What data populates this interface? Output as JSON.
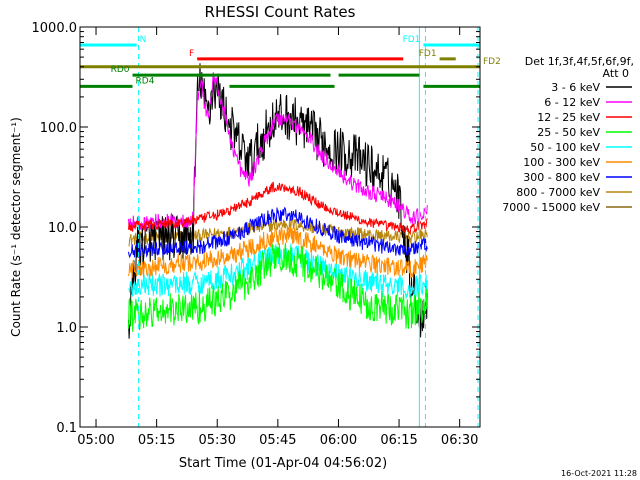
{
  "chart_data": {
    "type": "line",
    "title": "RHESSI Count Rates",
    "xlabel": "Start Time (01-Apr-04 04:56:02)",
    "ylabel": "Count Rate (s⁻¹ detector segment⁻¹)",
    "yscale": "log",
    "ylim": [
      0.1,
      1000
    ],
    "xlim_minutes_after_start": [
      0,
      99
    ],
    "x_ticks": [
      "05:00",
      "05:15",
      "05:30",
      "05:45",
      "06:00",
      "06:15",
      "06:30"
    ],
    "y_ticks": [
      "0.1",
      "1.0",
      "10.0",
      "100.0",
      "1000.0"
    ],
    "footer": "16-Oct-2021 11:28",
    "legend": {
      "title_line1": "Det 1f,3f,4f,5f,6f,9f,",
      "title_line2": "Att 0",
      "placement": "right"
    },
    "series": [
      {
        "name": "3 - 6 keV",
        "color": "#000000",
        "x": [
          12,
          14,
          16,
          18,
          20,
          22,
          24,
          26,
          28,
          29,
          30,
          31,
          32,
          33,
          34,
          36,
          38,
          40,
          42,
          45,
          48,
          51,
          54,
          57,
          60,
          63,
          66,
          69,
          72,
          75,
          78,
          79,
          80,
          82,
          84,
          86
        ],
        "y": [
          1.0,
          6.0,
          7.0,
          8.0,
          7.5,
          8.0,
          7.5,
          8.0,
          8.0,
          200,
          300,
          160,
          150,
          260,
          230,
          140,
          85,
          60,
          45,
          75,
          120,
          130,
          110,
          90,
          70,
          60,
          55,
          48,
          40,
          32,
          25,
          20,
          10,
          3,
          1.2,
          2.0
        ]
      },
      {
        "name": "6 - 12 keV",
        "color": "#ff00ff",
        "x": [
          12,
          15,
          20,
          25,
          28,
          29,
          30,
          31,
          32,
          33,
          34,
          36,
          38,
          40,
          42,
          45,
          48,
          51,
          54,
          57,
          60,
          63,
          66,
          69,
          72,
          75,
          78,
          80,
          82,
          86
        ],
        "y": [
          11,
          11,
          11.5,
          11.5,
          12,
          180,
          300,
          150,
          140,
          320,
          260,
          120,
          60,
          35,
          30,
          60,
          115,
          125,
          100,
          75,
          50,
          40,
          30,
          25,
          22,
          20,
          17,
          15,
          12,
          14
        ]
      },
      {
        "name": "12 - 25 keV",
        "color": "#ff0000",
        "x": [
          12,
          18,
          24,
          30,
          36,
          42,
          45,
          48,
          51,
          54,
          58,
          62,
          66,
          70,
          74,
          78,
          82,
          86
        ],
        "y": [
          10,
          10.5,
          11,
          12,
          14,
          18,
          22,
          25,
          25,
          23,
          18,
          15,
          13,
          11.5,
          10.5,
          10,
          9.5,
          11
        ]
      },
      {
        "name": "25 - 50 keV",
        "color": "#00ff00",
        "x": [
          12,
          18,
          24,
          30,
          36,
          42,
          45,
          48,
          51,
          54,
          58,
          62,
          66,
          70,
          74,
          78,
          82,
          86
        ],
        "y": [
          1.3,
          1.4,
          1.5,
          1.6,
          2.0,
          3.0,
          3.8,
          4.8,
          5.0,
          4.6,
          3.6,
          2.8,
          2.2,
          1.8,
          1.6,
          1.5,
          1.4,
          1.7
        ]
      },
      {
        "name": "50 - 100 keV",
        "color": "#00ffff",
        "x": [
          12,
          18,
          24,
          30,
          36,
          42,
          45,
          48,
          51,
          54,
          58,
          62,
          66,
          70,
          74,
          78,
          82,
          86
        ],
        "y": [
          2.5,
          2.6,
          2.7,
          2.8,
          3.2,
          4.0,
          4.6,
          5.2,
          5.4,
          5.0,
          4.3,
          3.7,
          3.2,
          2.9,
          2.7,
          2.5,
          2.4,
          2.8
        ]
      },
      {
        "name": "100 - 300 keV",
        "color": "#ff8c00",
        "x": [
          12,
          18,
          24,
          30,
          36,
          42,
          45,
          48,
          51,
          54,
          58,
          62,
          66,
          70,
          74,
          78,
          82,
          86
        ],
        "y": [
          3.8,
          4.0,
          4.3,
          4.5,
          5.0,
          6.2,
          7.2,
          8.0,
          8.3,
          7.8,
          6.6,
          5.6,
          4.9,
          4.5,
          4.2,
          4.0,
          3.8,
          4.5
        ]
      },
      {
        "name": "300 - 800 keV",
        "color": "#0000ff",
        "x": [
          12,
          18,
          24,
          30,
          36,
          42,
          45,
          48,
          51,
          54,
          58,
          62,
          66,
          70,
          74,
          78,
          82,
          86
        ],
        "y": [
          5.8,
          6.0,
          6.2,
          6.4,
          7.5,
          10,
          11.5,
          13,
          13.5,
          12.5,
          10.5,
          8.8,
          7.8,
          7.0,
          6.5,
          6.2,
          6.0,
          6.8
        ]
      },
      {
        "name": "800 - 7000 keV",
        "color": "#b8860b",
        "x": [
          12,
          18,
          24,
          30,
          36,
          42,
          45,
          48,
          51,
          54,
          58,
          62,
          66,
          70,
          74,
          78,
          82,
          86
        ],
        "y": [
          7.5,
          7.8,
          8.0,
          8.2,
          8.8,
          9.5,
          10,
          10.5,
          10.8,
          10.5,
          9.8,
          9.2,
          8.8,
          8.5,
          8.2,
          8.0,
          7.8,
          8.5
        ]
      },
      {
        "name": "7000 - 15000 keV",
        "color": "#8b6914",
        "x": [],
        "y": []
      }
    ],
    "flag_bars": [
      {
        "label": "N",
        "color": "#00ffff",
        "level": 660,
        "x_start": 0,
        "x_end": 14,
        "label_side": "right"
      },
      {
        "label": "F",
        "color": "#ff0000",
        "level": 480,
        "x_start": 29,
        "x_end": 80,
        "label_side": "left"
      },
      {
        "label": "FD1",
        "color": "#00ffff",
        "level": 660,
        "x_start": 85,
        "x_end": 99,
        "label_side": "left"
      },
      {
        "label": "FD1",
        "color": "#808000",
        "level": 480,
        "x_start": 89,
        "x_end": 93,
        "label_side": "left"
      },
      {
        "label": "FD2",
        "color": "#808000",
        "level": 400,
        "x_start": 0,
        "x_end": 99,
        "label_side": "right"
      },
      {
        "label": "RD0",
        "color": "#008000",
        "level": 330,
        "x_start": 13,
        "x_end": 62,
        "label_side": "left"
      },
      {
        "label": "",
        "color": "#008000",
        "level": 330,
        "x_start": 64,
        "x_end": 84,
        "label_side": "none"
      },
      {
        "label": "RD4",
        "color": "#008000",
        "level": 255,
        "x_start": 0,
        "x_end": 13,
        "label_side": "right"
      },
      {
        "label": "",
        "color": "#008000",
        "level": 255,
        "x_start": 37,
        "x_end": 63,
        "label_side": "none"
      },
      {
        "label": "",
        "color": "#008000",
        "level": 255,
        "x_start": 85,
        "x_end": 99,
        "label_side": "none"
      }
    ],
    "vlines": [
      {
        "x": 0,
        "color": "#00ffff",
        "style": "solid"
      },
      {
        "x": 84,
        "color": "#00ffff",
        "style": "solid"
      },
      {
        "x": 14.5,
        "color": "#00ffff",
        "style": "dashed"
      },
      {
        "x": 85.5,
        "color": "#00ffff",
        "style": "dashed"
      },
      {
        "x": 98.5,
        "color": "#00ffff",
        "style": "dashed"
      }
    ]
  }
}
